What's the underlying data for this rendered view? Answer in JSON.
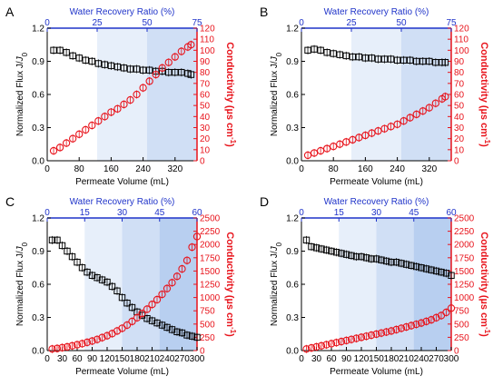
{
  "figure": {
    "colors": {
      "left_axis": "#000000",
      "right_axis": "#e8141c",
      "top_axis": "#1f33c9",
      "shade": "#3a7bd5"
    }
  },
  "chart_data": [
    {
      "panel": "A",
      "type": "scatter",
      "xlabel": "Permeate Volume (mL)",
      "ylabel_left": "Normalized Flux J/J0",
      "ylabel_right": "Conductivity (µs cm-1)",
      "top_axis_label": "Water Recovery Ratio (%)",
      "xlim": [
        0,
        375
      ],
      "x_ticks": [
        "0",
        "80",
        "160",
        "240",
        "320"
      ],
      "ylim_left": [
        0,
        1.2
      ],
      "y_ticks_left": [
        "0.0",
        "0.3",
        "0.6",
        "0.9",
        "1.2"
      ],
      "ylim_right": [
        0,
        120
      ],
      "y_ticks_right": [
        "0",
        "10",
        "20",
        "30",
        "40",
        "50",
        "60",
        "70",
        "80",
        "90",
        "100",
        "110",
        "120"
      ],
      "top_ticks": [
        "0",
        "25",
        "50",
        "75"
      ],
      "top_tick_x": [
        0,
        125,
        250,
        375
      ],
      "shaded_regions": [
        {
          "from": 125,
          "to": 250,
          "level": 1
        },
        {
          "from": 250,
          "to": 375,
          "level": 2
        }
      ],
      "series": [
        {
          "axis": "left",
          "marker": "square",
          "x": [
            16,
            32,
            48,
            64,
            80,
            96,
            112,
            128,
            144,
            160,
            176,
            192,
            208,
            224,
            240,
            256,
            272,
            288,
            304,
            320,
            336,
            352,
            360
          ],
          "y": [
            1.0,
            1.0,
            0.98,
            0.95,
            0.93,
            0.91,
            0.9,
            0.88,
            0.87,
            0.86,
            0.85,
            0.84,
            0.83,
            0.83,
            0.82,
            0.82,
            0.81,
            0.81,
            0.8,
            0.8,
            0.8,
            0.79,
            0.78
          ]
        },
        {
          "axis": "right",
          "marker": "circle",
          "x": [
            16,
            32,
            48,
            64,
            80,
            96,
            112,
            128,
            144,
            160,
            176,
            192,
            208,
            224,
            240,
            256,
            272,
            288,
            304,
            320,
            336,
            352,
            360
          ],
          "y": [
            9,
            12,
            16,
            20,
            24,
            28,
            32,
            36,
            40,
            44,
            47,
            51,
            55,
            60,
            66,
            72,
            78,
            84,
            89,
            94,
            99,
            103,
            105
          ]
        }
      ]
    },
    {
      "panel": "B",
      "type": "scatter",
      "xlabel": "Permeate Volume (mL)",
      "ylabel_left": "Normalized Flux J/J0",
      "ylabel_right": "Conductivity (µs cm-1)",
      "top_axis_label": "Water Recovery Ratio (%)",
      "xlim": [
        0,
        375
      ],
      "x_ticks": [
        "0",
        "80",
        "160",
        "240",
        "320"
      ],
      "ylim_left": [
        0,
        1.2
      ],
      "y_ticks_left": [
        "0.0",
        "0.3",
        "0.6",
        "0.9",
        "1.2"
      ],
      "ylim_right": [
        0,
        120
      ],
      "y_ticks_right": [
        "0",
        "10",
        "20",
        "30",
        "40",
        "50",
        "60",
        "70",
        "80",
        "90",
        "100",
        "110",
        "120"
      ],
      "top_ticks": [
        "0",
        "25",
        "50",
        "75"
      ],
      "top_tick_x": [
        0,
        125,
        250,
        375
      ],
      "shaded_regions": [
        {
          "from": 125,
          "to": 250,
          "level": 1
        },
        {
          "from": 250,
          "to": 375,
          "level": 2
        }
      ],
      "series": [
        {
          "axis": "left",
          "marker": "square",
          "x": [
            16,
            32,
            48,
            64,
            80,
            96,
            112,
            128,
            144,
            160,
            176,
            192,
            208,
            224,
            240,
            256,
            272,
            288,
            304,
            320,
            336,
            352,
            360
          ],
          "y": [
            1.0,
            1.01,
            1.0,
            0.98,
            0.97,
            0.96,
            0.95,
            0.94,
            0.94,
            0.93,
            0.93,
            0.92,
            0.92,
            0.92,
            0.91,
            0.91,
            0.91,
            0.9,
            0.9,
            0.9,
            0.89,
            0.89,
            0.89
          ]
        },
        {
          "axis": "right",
          "marker": "circle",
          "x": [
            16,
            32,
            48,
            64,
            80,
            96,
            112,
            128,
            144,
            160,
            176,
            192,
            208,
            224,
            240,
            256,
            272,
            288,
            304,
            320,
            336,
            352,
            360
          ],
          "y": [
            5,
            7,
            9,
            11,
            13,
            15,
            17,
            19,
            21,
            23,
            25,
            27,
            29,
            31,
            33,
            36,
            39,
            42,
            45,
            48,
            52,
            56,
            58
          ]
        }
      ]
    },
    {
      "panel": "C",
      "type": "scatter",
      "xlabel": "Permeate Volume (mL)",
      "ylabel_left": "Normalized Flux J/J0",
      "ylabel_right": "Conductivity (µs cm-1)",
      "top_axis_label": "Water Recovery Ratio (%)",
      "xlim": [
        0,
        300
      ],
      "x_ticks": [
        "0",
        "30",
        "60",
        "90",
        "120",
        "150",
        "180",
        "210",
        "240",
        "270",
        "300"
      ],
      "ylim_left": [
        0,
        1.2
      ],
      "y_ticks_left": [
        "0.0",
        "0.3",
        "0.6",
        "0.9",
        "1.2"
      ],
      "ylim_right": [
        0,
        2500
      ],
      "y_ticks_right": [
        "0",
        "250",
        "500",
        "750",
        "1000",
        "1250",
        "1500",
        "1750",
        "2000",
        "2250",
        "2500"
      ],
      "top_ticks": [
        "0",
        "15",
        "30",
        "45",
        "60"
      ],
      "top_tick_x": [
        0,
        75,
        150,
        225,
        300
      ],
      "shaded_regions": [
        {
          "from": 75,
          "to": 150,
          "level": 1
        },
        {
          "from": 150,
          "to": 225,
          "level": 2
        },
        {
          "from": 225,
          "to": 300,
          "level": 3
        }
      ],
      "series": [
        {
          "axis": "left",
          "marker": "square",
          "x": [
            10,
            20,
            30,
            40,
            50,
            60,
            70,
            80,
            90,
            100,
            110,
            120,
            130,
            140,
            150,
            160,
            170,
            180,
            190,
            200,
            210,
            220,
            230,
            240,
            250,
            260,
            270,
            280,
            290,
            300
          ],
          "y": [
            1.0,
            1.0,
            0.95,
            0.9,
            0.85,
            0.8,
            0.75,
            0.71,
            0.68,
            0.66,
            0.64,
            0.62,
            0.58,
            0.54,
            0.48,
            0.43,
            0.39,
            0.35,
            0.32,
            0.29,
            0.27,
            0.25,
            0.23,
            0.21,
            0.19,
            0.17,
            0.16,
            0.14,
            0.13,
            0.12
          ]
        },
        {
          "axis": "right",
          "marker": "circle",
          "x": [
            10,
            20,
            30,
            40,
            50,
            60,
            70,
            80,
            90,
            100,
            110,
            120,
            130,
            140,
            150,
            160,
            170,
            180,
            190,
            200,
            210,
            220,
            230,
            240,
            250,
            260,
            270,
            280,
            290,
            300
          ],
          "y": [
            30,
            40,
            55,
            70,
            90,
            110,
            130,
            155,
            180,
            210,
            245,
            280,
            320,
            370,
            420,
            480,
            550,
            620,
            700,
            780,
            870,
            960,
            1060,
            1170,
            1280,
            1400,
            1540,
            1700,
            1950,
            2150
          ]
        }
      ]
    },
    {
      "panel": "D",
      "type": "scatter",
      "xlabel": "Permeate Volume (mL)",
      "ylabel_left": "Normalized Flux J/J0",
      "ylabel_right": "Conductivity (µs cm-1)",
      "top_axis_label": "Water Recovery Ratio (%)",
      "xlim": [
        0,
        300
      ],
      "x_ticks": [
        "0",
        "30",
        "60",
        "90",
        "120",
        "150",
        "180",
        "210",
        "240",
        "270",
        "300"
      ],
      "ylim_left": [
        0,
        1.2
      ],
      "y_ticks_left": [
        "0.0",
        "0.3",
        "0.6",
        "0.9",
        "1.2"
      ],
      "ylim_right": [
        0,
        2500
      ],
      "y_ticks_right": [
        "0",
        "250",
        "500",
        "750",
        "1000",
        "1250",
        "1500",
        "1750",
        "2000",
        "2250",
        "2500"
      ],
      "top_ticks": [
        "0",
        "15",
        "30",
        "45",
        "60"
      ],
      "top_tick_x": [
        0,
        75,
        150,
        225,
        300
      ],
      "shaded_regions": [
        {
          "from": 75,
          "to": 150,
          "level": 1
        },
        {
          "from": 150,
          "to": 225,
          "level": 2
        },
        {
          "from": 225,
          "to": 300,
          "level": 3
        }
      ],
      "series": [
        {
          "axis": "left",
          "marker": "square",
          "x": [
            10,
            20,
            30,
            40,
            50,
            60,
            70,
            80,
            90,
            100,
            110,
            120,
            130,
            140,
            150,
            160,
            170,
            180,
            190,
            200,
            210,
            220,
            230,
            240,
            250,
            260,
            270,
            280,
            290,
            300
          ],
          "y": [
            1.0,
            0.94,
            0.93,
            0.92,
            0.91,
            0.9,
            0.89,
            0.88,
            0.87,
            0.86,
            0.85,
            0.85,
            0.84,
            0.83,
            0.83,
            0.82,
            0.81,
            0.8,
            0.8,
            0.79,
            0.78,
            0.77,
            0.76,
            0.75,
            0.74,
            0.73,
            0.72,
            0.71,
            0.7,
            0.68
          ]
        },
        {
          "axis": "right",
          "marker": "circle",
          "x": [
            10,
            20,
            30,
            40,
            50,
            60,
            70,
            80,
            90,
            100,
            110,
            120,
            130,
            140,
            150,
            160,
            170,
            180,
            190,
            200,
            210,
            220,
            230,
            240,
            250,
            260,
            270,
            280,
            290,
            300
          ],
          "y": [
            30,
            50,
            70,
            90,
            110,
            130,
            150,
            170,
            190,
            210,
            230,
            250,
            270,
            290,
            310,
            330,
            350,
            370,
            395,
            420,
            445,
            470,
            495,
            520,
            550,
            580,
            620,
            660,
            720,
            800
          ]
        }
      ]
    }
  ]
}
